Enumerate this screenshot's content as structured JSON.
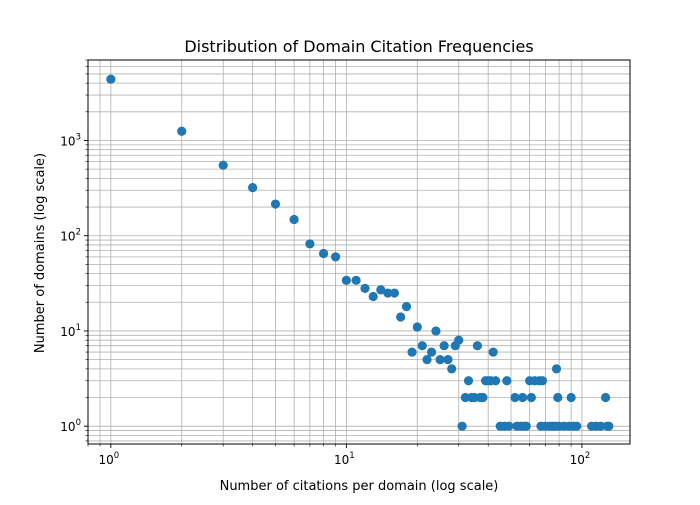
{
  "chart_data": {
    "type": "scatter",
    "title": "Distribution of Domain Citation Frequencies",
    "xlabel": "Number of citations per domain (log scale)",
    "ylabel": "Number of domains (log scale)",
    "xscale": "log",
    "yscale": "log",
    "xlim": [
      0.8,
      160
    ],
    "ylim": [
      0.65,
      7000
    ],
    "grid": true,
    "marker_color": "#1f77b4",
    "x_ticks": [
      {
        "value": 1,
        "base": "10",
        "exp": "0"
      },
      {
        "value": 10,
        "base": "10",
        "exp": "1"
      },
      {
        "value": 100,
        "base": "10",
        "exp": "2"
      }
    ],
    "y_ticks": [
      {
        "value": 1,
        "base": "10",
        "exp": "0"
      },
      {
        "value": 10,
        "base": "10",
        "exp": "1"
      },
      {
        "value": 100,
        "base": "10",
        "exp": "2"
      },
      {
        "value": 1000,
        "base": "10",
        "exp": "3"
      }
    ],
    "points": [
      [
        1,
        4400
      ],
      [
        2,
        1250
      ],
      [
        3,
        550
      ],
      [
        4,
        320
      ],
      [
        5,
        215
      ],
      [
        6,
        148
      ],
      [
        7,
        82
      ],
      [
        8,
        65
      ],
      [
        9,
        60
      ],
      [
        10,
        34
      ],
      [
        11,
        34
      ],
      [
        12,
        28
      ],
      [
        13,
        23
      ],
      [
        14,
        27
      ],
      [
        15,
        25
      ],
      [
        16,
        25
      ],
      [
        17,
        14
      ],
      [
        18,
        18
      ],
      [
        19,
        6
      ],
      [
        20,
        11
      ],
      [
        21,
        7
      ],
      [
        22,
        5
      ],
      [
        23,
        6
      ],
      [
        24,
        10
      ],
      [
        25,
        5
      ],
      [
        26,
        7
      ],
      [
        27,
        5
      ],
      [
        28,
        4
      ],
      [
        29,
        7
      ],
      [
        30,
        8
      ],
      [
        31,
        1
      ],
      [
        32,
        2
      ],
      [
        33,
        3
      ],
      [
        34,
        2
      ],
      [
        35,
        2
      ],
      [
        36,
        7
      ],
      [
        37,
        2
      ],
      [
        38,
        2
      ],
      [
        39,
        3
      ],
      [
        40,
        3
      ],
      [
        41,
        3
      ],
      [
        42,
        6
      ],
      [
        43,
        3
      ],
      [
        45,
        1
      ],
      [
        47,
        1
      ],
      [
        48,
        3
      ],
      [
        49,
        1
      ],
      [
        52,
        2
      ],
      [
        53,
        1
      ],
      [
        55,
        1
      ],
      [
        56,
        2
      ],
      [
        57,
        1
      ],
      [
        58,
        1
      ],
      [
        60,
        3
      ],
      [
        61,
        2
      ],
      [
        63,
        3
      ],
      [
        66,
        3
      ],
      [
        67,
        1
      ],
      [
        68,
        3
      ],
      [
        70,
        1
      ],
      [
        73,
        1
      ],
      [
        75,
        1
      ],
      [
        77,
        1
      ],
      [
        78,
        4
      ],
      [
        79,
        2
      ],
      [
        80,
        1
      ],
      [
        84,
        1
      ],
      [
        88,
        1
      ],
      [
        90,
        2
      ],
      [
        92,
        1
      ],
      [
        95,
        1
      ],
      [
        110,
        1
      ],
      [
        115,
        1
      ],
      [
        120,
        1
      ],
      [
        126,
        2
      ],
      [
        128,
        1
      ],
      [
        130,
        1
      ]
    ]
  }
}
